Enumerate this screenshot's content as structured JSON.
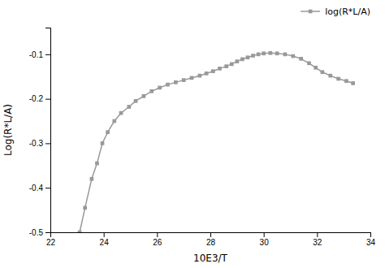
{
  "chart_data": {
    "type": "line",
    "x": [
      23.1,
      23.3,
      23.55,
      23.75,
      23.95,
      24.15,
      24.4,
      24.65,
      24.95,
      25.2,
      25.5,
      25.8,
      26.1,
      26.4,
      26.7,
      27.0,
      27.3,
      27.6,
      27.85,
      28.1,
      28.35,
      28.6,
      28.8,
      29.0,
      29.2,
      29.4,
      29.6,
      29.8,
      30.0,
      30.25,
      30.5,
      30.8,
      31.1,
      31.4,
      31.7,
      31.95,
      32.2,
      32.5,
      32.8,
      33.1,
      33.35
    ],
    "series": [
      {
        "name": "log(R*L/A)",
        "color": "#999999",
        "marker": "square",
        "values": [
          -0.5,
          -0.445,
          -0.38,
          -0.345,
          -0.3,
          -0.275,
          -0.25,
          -0.232,
          -0.218,
          -0.205,
          -0.194,
          -0.183,
          -0.175,
          -0.168,
          -0.163,
          -0.158,
          -0.153,
          -0.148,
          -0.143,
          -0.138,
          -0.132,
          -0.127,
          -0.122,
          -0.116,
          -0.111,
          -0.107,
          -0.103,
          -0.1,
          -0.098,
          -0.097,
          -0.098,
          -0.1,
          -0.104,
          -0.11,
          -0.12,
          -0.13,
          -0.14,
          -0.148,
          -0.155,
          -0.16,
          -0.165
        ]
      }
    ],
    "xlabel": "10E3/T",
    "ylabel": "Log(R*L/A)",
    "xlim": [
      22,
      34
    ],
    "ylim": [
      -0.5,
      -0.04
    ],
    "xticks": [
      22,
      24,
      26,
      28,
      30,
      32,
      34
    ],
    "yticks": [
      -0.5,
      -0.4,
      -0.3,
      -0.2,
      -0.1
    ],
    "legend": "upper right"
  }
}
